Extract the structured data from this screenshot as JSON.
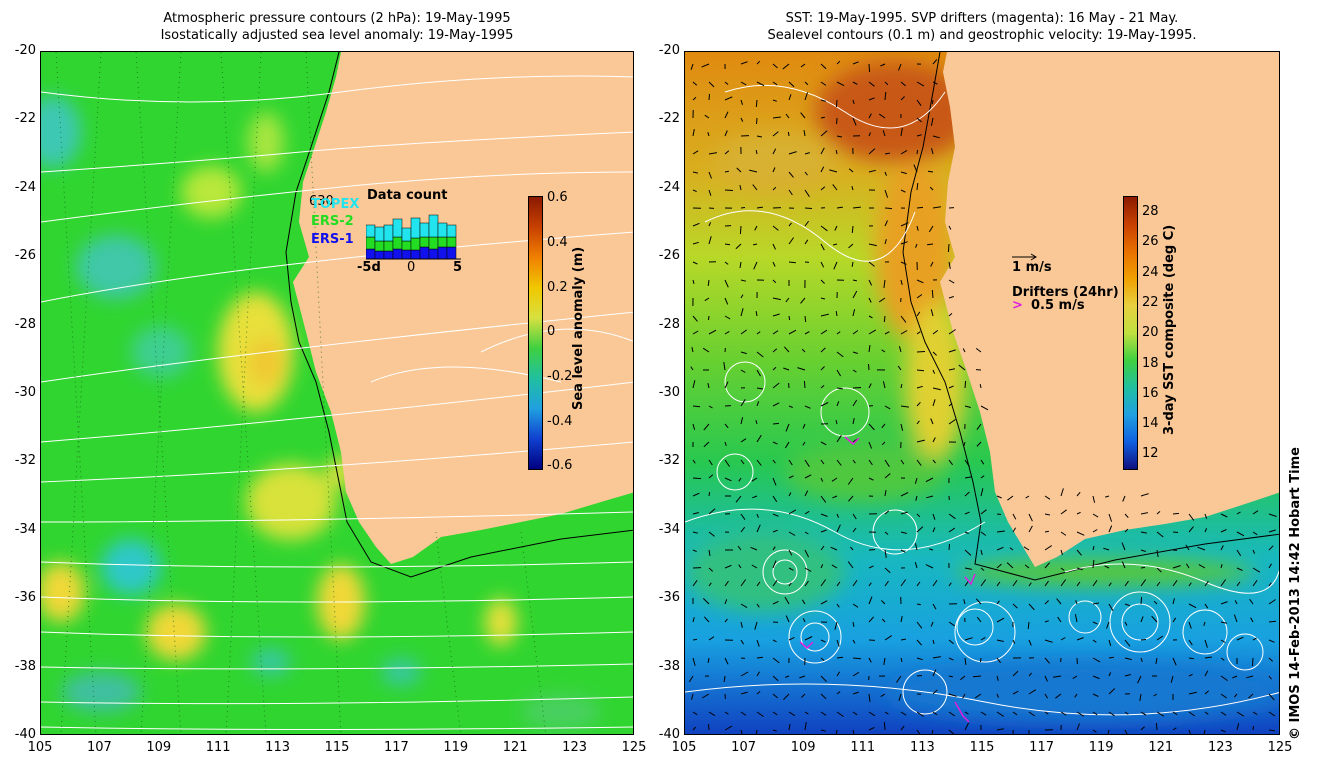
{
  "left_title": {
    "line1": "Atmospheric pressure contours (2 hPa): 19-May-1995",
    "line2": "Isostatically adjusted sea level anomaly: 19-May-1995"
  },
  "right_title": {
    "line1": "SST: 19-May-1995. SVP drifters (magenta): 16 May - 21 May.",
    "line2": "Sealevel contours (0.1 m) and geostrophic velocity: 19-May-1995."
  },
  "y_ticks": [
    "-20",
    "-22",
    "-24",
    "-26",
    "-28",
    "-30",
    "-32",
    "-34",
    "-36",
    "-38",
    "-40"
  ],
  "x_ticks": [
    "105",
    "107",
    "109",
    "111",
    "113",
    "115",
    "117",
    "119",
    "121",
    "123",
    "125"
  ],
  "left_colorbar": {
    "label": "Sea level anomaly (m)",
    "ticks": [
      "0.6",
      "0.4",
      "0.2",
      "0",
      "-0.2",
      "-0.4",
      "-0.6"
    ],
    "range": [
      -0.6,
      0.6
    ]
  },
  "right_colorbar": {
    "label": "3-day SST composite (deg C)",
    "ticks": [
      "28",
      "26",
      "24",
      "22",
      "20",
      "18",
      "16",
      "14",
      "12"
    ],
    "range": [
      11,
      29
    ]
  },
  "data_count_inset": {
    "title": "Data count",
    "count": "630",
    "series": [
      {
        "name": "TOPEX",
        "color": "#22e4ee"
      },
      {
        "name": "ERS-2",
        "color": "#22dd22"
      },
      {
        "name": "ERS-1",
        "color": "#1111ee"
      }
    ],
    "x_ticks": [
      "-5d",
      "0",
      "5"
    ]
  },
  "velocity_legend": {
    "vector_label": "1 m/s",
    "drifters_title": "Drifters (24hr)",
    "drifter_label": "0.5 m/s"
  },
  "credit": "© IMOS 14-Feb-2013 14:42 Hobart Time",
  "colors": {
    "land": "#fac896",
    "ocean_green": "#2ed82e",
    "drifter_magenta": "#e020e0"
  }
}
